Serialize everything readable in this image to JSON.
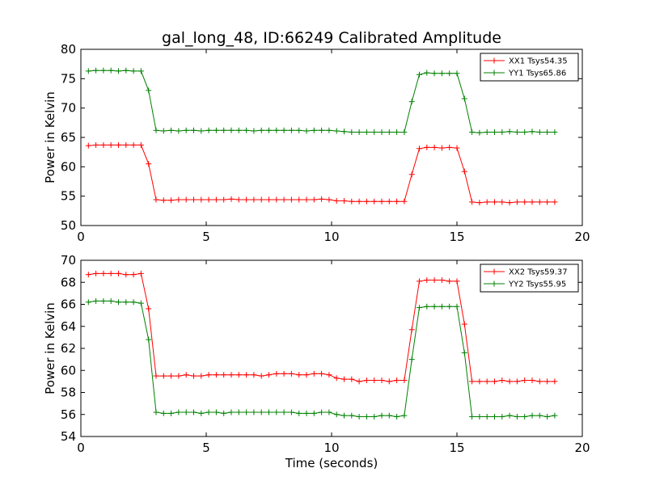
{
  "chart_data": [
    {
      "type": "line",
      "title": "gal_long_48, ID:66249 Calibrated Amplitude",
      "xlabel": "",
      "ylabel": "Power in Kelvin",
      "xlim": [
        0,
        20
      ],
      "ylim": [
        50,
        80
      ],
      "xticks": [
        0,
        5,
        10,
        15,
        20
      ],
      "yticks": [
        50,
        55,
        60,
        65,
        70,
        75,
        80
      ],
      "legend_position": "top-right",
      "x": [
        0.3,
        0.6,
        0.9,
        1.2,
        1.5,
        1.8,
        2.1,
        2.4,
        2.7,
        3.0,
        3.3,
        3.6,
        3.9,
        4.2,
        4.5,
        4.8,
        5.1,
        5.4,
        5.7,
        6.0,
        6.3,
        6.6,
        6.9,
        7.2,
        7.5,
        7.8,
        8.1,
        8.4,
        8.7,
        9.0,
        9.3,
        9.6,
        9.9,
        10.2,
        10.5,
        10.8,
        11.1,
        11.4,
        11.7,
        12.0,
        12.3,
        12.6,
        12.9,
        13.2,
        13.5,
        13.8,
        14.1,
        14.4,
        14.7,
        15.0,
        15.3,
        15.6,
        15.9,
        16.2,
        16.5,
        16.8,
        17.1,
        17.4,
        17.7,
        18.0,
        18.3,
        18.6,
        18.9
      ],
      "series": [
        {
          "name": "XX1 Tsys54.35",
          "color": "#ff0000",
          "values": [
            63.6,
            63.7,
            63.7,
            63.7,
            63.7,
            63.7,
            63.7,
            63.7,
            60.5,
            54.4,
            54.3,
            54.3,
            54.4,
            54.4,
            54.4,
            54.4,
            54.4,
            54.4,
            54.4,
            54.5,
            54.4,
            54.4,
            54.4,
            54.4,
            54.4,
            54.4,
            54.4,
            54.4,
            54.4,
            54.4,
            54.4,
            54.5,
            54.4,
            54.2,
            54.2,
            54.1,
            54.1,
            54.1,
            54.1,
            54.1,
            54.1,
            54.1,
            54.1,
            58.7,
            63.1,
            63.3,
            63.3,
            63.2,
            63.3,
            63.2,
            59.2,
            54.0,
            53.9,
            54.0,
            54.0,
            54.0,
            53.9,
            54.0,
            54.0,
            54.0,
            54.0,
            54.0,
            54.0
          ]
        },
        {
          "name": "YY1 Tsys65.86",
          "color": "#008000",
          "values": [
            76.3,
            76.4,
            76.4,
            76.4,
            76.3,
            76.4,
            76.3,
            76.3,
            73.0,
            66.2,
            66.1,
            66.2,
            66.1,
            66.2,
            66.2,
            66.1,
            66.2,
            66.2,
            66.2,
            66.2,
            66.2,
            66.2,
            66.1,
            66.2,
            66.2,
            66.2,
            66.2,
            66.2,
            66.2,
            66.1,
            66.2,
            66.2,
            66.2,
            66.1,
            66.0,
            65.9,
            65.9,
            65.9,
            65.9,
            65.9,
            65.9,
            65.9,
            65.9,
            71.1,
            75.7,
            76.0,
            75.9,
            75.9,
            75.9,
            75.9,
            71.6,
            65.9,
            65.8,
            65.9,
            65.9,
            65.9,
            66.0,
            65.9,
            65.9,
            66.0,
            65.9,
            65.9,
            65.9
          ]
        }
      ]
    },
    {
      "type": "line",
      "title": "",
      "xlabel": "Time (seconds)",
      "ylabel": "Power in Kelvin",
      "xlim": [
        0,
        20
      ],
      "ylim": [
        54,
        70
      ],
      "xticks": [
        0,
        5,
        10,
        15,
        20
      ],
      "yticks": [
        54,
        56,
        58,
        60,
        62,
        64,
        66,
        68,
        70
      ],
      "legend_position": "top-right",
      "x": [
        0.3,
        0.6,
        0.9,
        1.2,
        1.5,
        1.8,
        2.1,
        2.4,
        2.7,
        3.0,
        3.3,
        3.6,
        3.9,
        4.2,
        4.5,
        4.8,
        5.1,
        5.4,
        5.7,
        6.0,
        6.3,
        6.6,
        6.9,
        7.2,
        7.5,
        7.8,
        8.1,
        8.4,
        8.7,
        9.0,
        9.3,
        9.6,
        9.9,
        10.2,
        10.5,
        10.8,
        11.1,
        11.4,
        11.7,
        12.0,
        12.3,
        12.6,
        12.9,
        13.2,
        13.5,
        13.8,
        14.1,
        14.4,
        14.7,
        15.0,
        15.3,
        15.6,
        15.9,
        16.2,
        16.5,
        16.8,
        17.1,
        17.4,
        17.7,
        18.0,
        18.3,
        18.6,
        18.9
      ],
      "series": [
        {
          "name": "XX2 Tsys59.37",
          "color": "#ff0000",
          "values": [
            68.7,
            68.8,
            68.8,
            68.8,
            68.8,
            68.7,
            68.7,
            68.8,
            65.6,
            59.5,
            59.5,
            59.5,
            59.5,
            59.6,
            59.5,
            59.5,
            59.6,
            59.6,
            59.6,
            59.6,
            59.6,
            59.6,
            59.6,
            59.5,
            59.6,
            59.7,
            59.7,
            59.7,
            59.6,
            59.6,
            59.7,
            59.7,
            59.6,
            59.3,
            59.2,
            59.2,
            59.0,
            59.1,
            59.1,
            59.1,
            59.0,
            59.1,
            59.1,
            63.7,
            68.1,
            68.2,
            68.2,
            68.2,
            68.1,
            68.1,
            64.2,
            59.0,
            59.0,
            59.0,
            59.0,
            59.1,
            59.0,
            59.0,
            59.1,
            59.1,
            59.0,
            59.0,
            59.0
          ]
        },
        {
          "name": "YY2 Tsys55.95",
          "color": "#008000",
          "values": [
            66.2,
            66.3,
            66.3,
            66.3,
            66.2,
            66.2,
            66.2,
            66.1,
            62.8,
            56.2,
            56.1,
            56.1,
            56.2,
            56.2,
            56.2,
            56.1,
            56.2,
            56.2,
            56.1,
            56.2,
            56.2,
            56.2,
            56.2,
            56.2,
            56.2,
            56.2,
            56.2,
            56.2,
            56.1,
            56.1,
            56.1,
            56.2,
            56.2,
            56.0,
            55.9,
            55.9,
            55.8,
            55.8,
            55.8,
            55.9,
            55.9,
            55.8,
            55.9,
            61.0,
            65.7,
            65.8,
            65.8,
            65.8,
            65.8,
            65.8,
            61.6,
            55.8,
            55.8,
            55.8,
            55.8,
            55.8,
            55.9,
            55.8,
            55.8,
            55.9,
            55.9,
            55.8,
            55.9
          ]
        }
      ]
    }
  ]
}
